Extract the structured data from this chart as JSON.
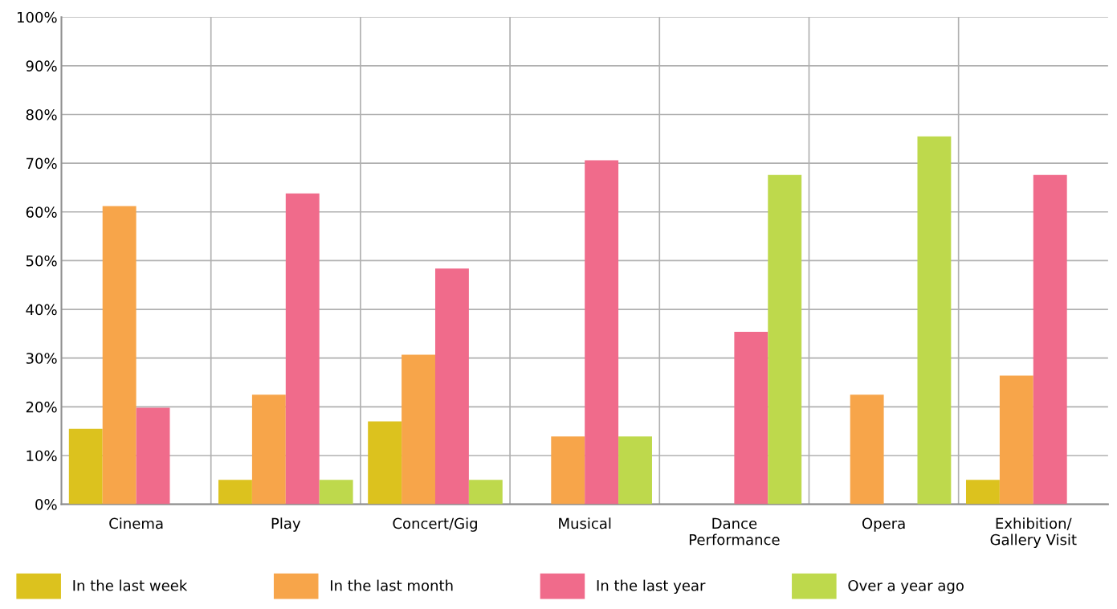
{
  "chart_data": {
    "type": "bar",
    "categories": [
      "Cinema",
      "Play",
      "Concert/Gig",
      "Musical",
      "Dance\nPerformance",
      "Opera",
      "Exhibition/\nGallery Visit"
    ],
    "series": [
      {
        "name": "In the last week",
        "color": "#dcc21e",
        "values": [
          15.5,
          5.0,
          17.0,
          null,
          null,
          null,
          5.0
        ]
      },
      {
        "name": "In the last month",
        "color": "#f7a54a",
        "values": [
          61.2,
          22.5,
          30.7,
          13.9,
          null,
          22.5,
          26.4
        ]
      },
      {
        "name": "In the last year",
        "color": "#f06b8b",
        "values": [
          19.8,
          63.8,
          48.4,
          70.6,
          35.4,
          null,
          67.6
        ]
      },
      {
        "name": "Over a year ago",
        "color": "#bed94c",
        "values": [
          null,
          5.0,
          5.0,
          13.9,
          67.6,
          75.5,
          null
        ]
      }
    ],
    "ylim": [
      0,
      100
    ],
    "yticks": [
      {
        "value": 0,
        "label": "0%"
      },
      {
        "value": 10,
        "label": "10%"
      },
      {
        "value": 20,
        "label": "20%"
      },
      {
        "value": 30,
        "label": "30%"
      },
      {
        "value": 40,
        "label": "40%"
      },
      {
        "value": 50,
        "label": "50%"
      },
      {
        "value": 60,
        "label": "60%"
      },
      {
        "value": 70,
        "label": "70%"
      },
      {
        "value": 80,
        "label": "80%"
      },
      {
        "value": 90,
        "label": "90%"
      },
      {
        "value": 100,
        "label": "100%"
      }
    ],
    "grid": true,
    "legend": "bottom"
  }
}
